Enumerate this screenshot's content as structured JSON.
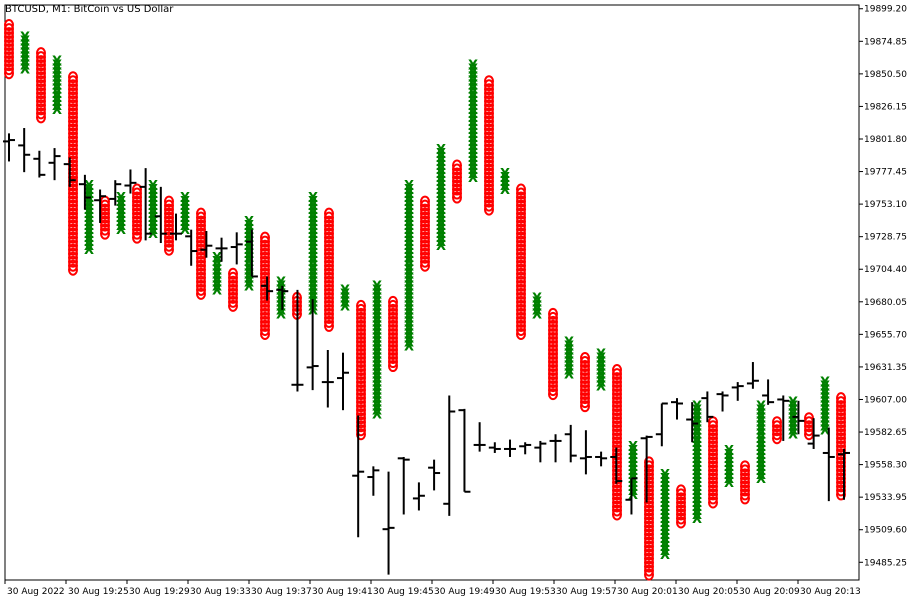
{
  "chart_data": {
    "type": "line",
    "title": "BTCUSD, M1:  BitCoin vs US Dollar",
    "xlabel": "",
    "ylabel": "",
    "ylim": [
      19472,
      19902
    ],
    "grid": false,
    "legend": "none",
    "colors": {
      "price_bars": "#000000",
      "x_marks": "#008000",
      "o_marks": "#ff0000",
      "axis": "#000000",
      "background": "#ffffff"
    },
    "y_ticks": [
      "19899.20",
      "19874.85",
      "19850.50",
      "19826.15",
      "19801.80",
      "19777.45",
      "19753.10",
      "19728.75",
      "19704.40",
      "19680.05",
      "19655.70",
      "19631.35",
      "19607.00",
      "19582.65",
      "19558.30",
      "19533.95",
      "19509.60",
      "19485.25"
    ],
    "x_ticks": [
      "30 Aug 2022",
      "30 Aug 19:25",
      "30 Aug 19:29",
      "30 Aug 19:33",
      "30 Aug 19:37",
      "30 Aug 19:41",
      "30 Aug 19:45",
      "30 Aug 19:49",
      "30 Aug 19:53",
      "30 Aug 19:57",
      "30 Aug 20:01",
      "30 Aug 20:05",
      "30 Aug 20:09",
      "30 Aug 20:13"
    ],
    "price_bars": [
      {
        "h": 19806,
        "l": 19785,
        "o": 19800,
        "c": 19801
      },
      {
        "h": 19810,
        "l": 19777,
        "o": 19797,
        "c": 19790
      },
      {
        "h": 19793,
        "l": 19773,
        "o": 19787,
        "c": 19775
      },
      {
        "h": 19795,
        "l": 19771,
        "o": 19784,
        "c": 19789
      },
      {
        "h": 19788,
        "l": 19766,
        "o": 19783,
        "c": 19771
      },
      {
        "h": 19775,
        "l": 19749,
        "o": 19768,
        "c": 19758
      },
      {
        "h": 19764,
        "l": 19739,
        "o": 19756,
        "c": 19759
      },
      {
        "h": 19771,
        "l": 19752,
        "o": 19757,
        "c": 19768
      },
      {
        "h": 19779,
        "l": 19761,
        "o": 19767,
        "c": 19769
      },
      {
        "h": 19780,
        "l": 19726,
        "o": 19766,
        "c": 19731
      },
      {
        "h": 19766,
        "l": 19724,
        "o": 19744,
        "c": 19731
      },
      {
        "h": 19746,
        "l": 19726,
        "o": 19731,
        "c": 19731
      },
      {
        "h": 19734,
        "l": 19707,
        "o": 19729,
        "c": 19718
      },
      {
        "h": 19733,
        "l": 19713,
        "o": 19719,
        "c": 19722
      },
      {
        "h": 19728,
        "l": 19710,
        "o": 19720,
        "c": 19720
      },
      {
        "h": 19732,
        "l": 19708,
        "o": 19721,
        "c": 19723
      },
      {
        "h": 19734,
        "l": 19699,
        "o": 19725,
        "c": 19699
      },
      {
        "h": 19699,
        "l": 19681,
        "o": 19692,
        "c": 19688
      },
      {
        "h": 19692,
        "l": 19674,
        "o": 19689,
        "c": 19688
      },
      {
        "h": 19689,
        "l": 19613,
        "o": 19618,
        "c": 19618
      },
      {
        "h": 19682,
        "l": 19614,
        "o": 19631,
        "c": 19632
      },
      {
        "h": 19644,
        "l": 19601,
        "o": 19620,
        "c": 19620
      },
      {
        "h": 19642,
        "l": 19599,
        "o": 19623,
        "c": 19627
      },
      {
        "h": 19595,
        "l": 19504,
        "o": 19550,
        "c": 19553
      },
      {
        "h": 19557,
        "l": 19535,
        "o": 19549,
        "c": 19554
      },
      {
        "h": 19553,
        "l": 19476,
        "o": 19510,
        "c": 19511
      },
      {
        "h": 19564,
        "l": 19521,
        "o": 19563,
        "c": 19562
      },
      {
        "h": 19545,
        "l": 19524,
        "o": 19533,
        "c": 19535
      },
      {
        "h": 19562,
        "l": 19539,
        "o": 19556,
        "c": 19552
      },
      {
        "h": 19610,
        "l": 19520,
        "o": 19529,
        "c": 19598
      },
      {
        "h": 19600,
        "l": 19538,
        "o": 19599,
        "c": 19538
      },
      {
        "h": 19590,
        "l": 19568,
        "o": 19573,
        "c": 19573
      },
      {
        "h": 19575,
        "l": 19567,
        "o": 19571,
        "c": 19570
      },
      {
        "h": 19577,
        "l": 19564,
        "o": 19570,
        "c": 19570
      },
      {
        "h": 19575,
        "l": 19566,
        "o": 19572,
        "c": 19573
      },
      {
        "h": 19576,
        "l": 19560,
        "o": 19571,
        "c": 19574
      },
      {
        "h": 19581,
        "l": 19560,
        "o": 19576,
        "c": 19576
      },
      {
        "h": 19588,
        "l": 19560,
        "o": 19581,
        "c": 19565
      },
      {
        "h": 19584,
        "l": 19551,
        "o": 19563,
        "c": 19564
      },
      {
        "h": 19568,
        "l": 19557,
        "o": 19564,
        "c": 19563
      },
      {
        "h": 19571,
        "l": 19544,
        "o": 19564,
        "c": 19546
      },
      {
        "h": 19548,
        "l": 19521,
        "o": 19532,
        "c": 19548
      },
      {
        "h": 19580,
        "l": 19530,
        "o": 19578,
        "c": 19579
      },
      {
        "h": 19604,
        "l": 19572,
        "o": 19581,
        "c": 19604
      },
      {
        "h": 19608,
        "l": 19592,
        "o": 19605,
        "c": 19604
      },
      {
        "h": 19605,
        "l": 19575,
        "o": 19592,
        "c": 19589
      },
      {
        "h": 19613,
        "l": 19590,
        "o": 19608,
        "c": 19594
      },
      {
        "h": 19613,
        "l": 19598,
        "o": 19611,
        "c": 19610
      },
      {
        "h": 19620,
        "l": 19606,
        "o": 19616,
        "c": 19617
      },
      {
        "h": 19635,
        "l": 19615,
        "o": 19619,
        "c": 19621
      },
      {
        "h": 19622,
        "l": 19603,
        "o": 19610,
        "c": 19605
      },
      {
        "h": 19610,
        "l": 19576,
        "o": 19607,
        "c": 19606
      },
      {
        "h": 19606,
        "l": 19581,
        "o": 19594,
        "c": 19591
      },
      {
        "h": 19593,
        "l": 19570,
        "o": 19574,
        "c": 19580
      },
      {
        "h": 19586,
        "l": 19531,
        "o": 19567,
        "c": 19564
      },
      {
        "h": 19570,
        "l": 19532,
        "o": 19566,
        "c": 19567
      }
    ],
    "xo_columns": [
      {
        "type": "O",
        "top": 19887,
        "bottom": 19851
      },
      {
        "type": "X",
        "bottom": 19854,
        "top": 19878
      },
      {
        "type": "O",
        "top": 19866,
        "bottom": 19818
      },
      {
        "type": "X",
        "bottom": 19824,
        "top": 19860
      },
      {
        "type": "O",
        "top": 19848,
        "bottom": 19704
      },
      {
        "type": "X",
        "bottom": 19719,
        "top": 19767
      },
      {
        "type": "O",
        "top": 19755,
        "bottom": 19731
      },
      {
        "type": "X",
        "bottom": 19734,
        "top": 19758
      },
      {
        "type": "O",
        "top": 19764,
        "bottom": 19728
      },
      {
        "type": "X",
        "bottom": 19731,
        "top": 19767
      },
      {
        "type": "O",
        "top": 19755,
        "bottom": 19719
      },
      {
        "type": "X",
        "bottom": 19734,
        "top": 19758
      },
      {
        "type": "O",
        "top": 19746,
        "bottom": 19686
      },
      {
        "type": "X",
        "bottom": 19689,
        "top": 19713
      },
      {
        "type": "O",
        "top": 19701,
        "bottom": 19677
      },
      {
        "type": "X",
        "bottom": 19692,
        "top": 19740
      },
      {
        "type": "O",
        "top": 19728,
        "bottom": 19656
      },
      {
        "type": "X",
        "bottom": 19671,
        "top": 19695
      },
      {
        "type": "O",
        "top": 19683,
        "bottom": 19671
      },
      {
        "type": "X",
        "bottom": 19674,
        "top": 19758
      },
      {
        "type": "O",
        "top": 19746,
        "bottom": 19662
      },
      {
        "type": "X",
        "bottom": 19677,
        "top": 19689
      },
      {
        "type": "O",
        "top": 19677,
        "bottom": 19581
      },
      {
        "type": "X",
        "bottom": 19596,
        "top": 19692
      },
      {
        "type": "O",
        "top": 19680,
        "bottom": 19632
      },
      {
        "type": "X",
        "bottom": 19647,
        "top": 19767
      },
      {
        "type": "O",
        "top": 19755,
        "bottom": 19707
      },
      {
        "type": "X",
        "bottom": 19722,
        "top": 19794
      },
      {
        "type": "O",
        "top": 19782,
        "bottom": 19758
      },
      {
        "type": "X",
        "bottom": 19773,
        "top": 19857
      },
      {
        "type": "O",
        "top": 19845,
        "bottom": 19749
      },
      {
        "type": "X",
        "bottom": 19764,
        "top": 19776
      },
      {
        "type": "O",
        "top": 19764,
        "bottom": 19656
      },
      {
        "type": "X",
        "bottom": 19671,
        "top": 19683
      },
      {
        "type": "O",
        "top": 19671,
        "bottom": 19611
      },
      {
        "type": "X",
        "bottom": 19626,
        "top": 19650
      },
      {
        "type": "O",
        "top": 19638,
        "bottom": 19602
      },
      {
        "type": "X",
        "bottom": 19617,
        "top": 19641
      },
      {
        "type": "O",
        "top": 19629,
        "bottom": 19521
      },
      {
        "type": "X",
        "bottom": 19536,
        "top": 19572
      },
      {
        "type": "O",
        "top": 19560,
        "bottom": 19476
      },
      {
        "type": "X",
        "bottom": 19491,
        "top": 19551
      },
      {
        "type": "O",
        "top": 19539,
        "bottom": 19515
      },
      {
        "type": "X",
        "bottom": 19518,
        "top": 19602
      },
      {
        "type": "O",
        "top": 19590,
        "bottom": 19530
      },
      {
        "type": "X",
        "bottom": 19545,
        "top": 19569
      },
      {
        "type": "O",
        "top": 19557,
        "bottom": 19533
      },
      {
        "type": "X",
        "bottom": 19548,
        "top": 19602
      },
      {
        "type": "O",
        "top": 19590,
        "bottom": 19578
      },
      {
        "type": "X",
        "bottom": 19581,
        "top": 19605
      },
      {
        "type": "O",
        "top": 19593,
        "bottom": 19581
      },
      {
        "type": "X",
        "bottom": 19584,
        "top": 19620
      },
      {
        "type": "O",
        "top": 19608,
        "bottom": 19536
      }
    ]
  }
}
